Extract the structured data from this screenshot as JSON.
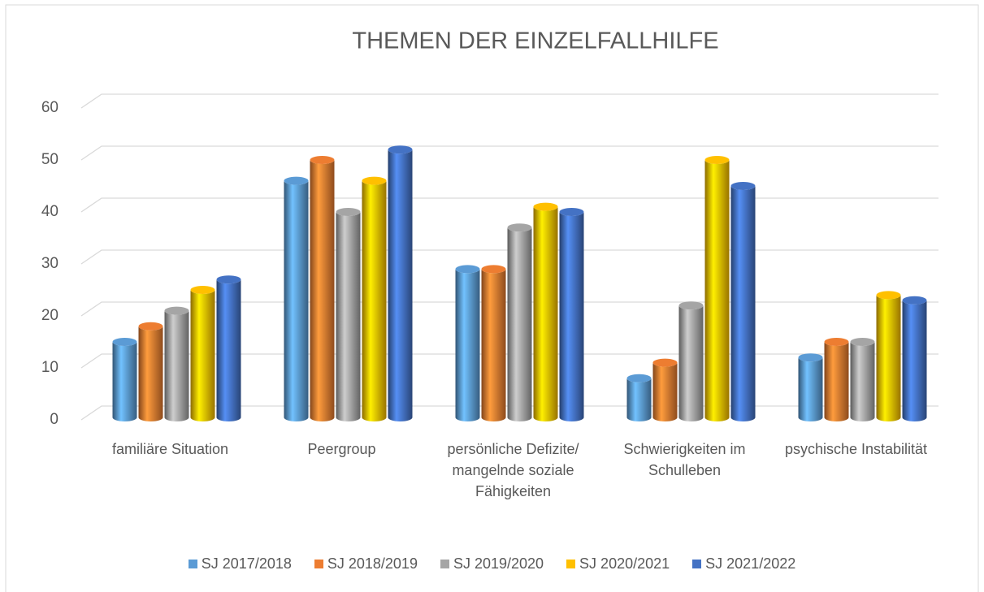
{
  "chart_data": {
    "type": "bar",
    "title": "THEMEN DER EINZELFALLHILFE",
    "categories": [
      "familiäre Situation",
      "Peergroup",
      "persönliche Defizite/ mangelnde soziale Fähigkeiten",
      "Schwierigkeiten im Schulleben",
      "psychische Instabilität"
    ],
    "series": [
      {
        "name": "SJ 2017/2018",
        "color": "#5b9bd5",
        "values": [
          15,
          46,
          29,
          8,
          12
        ]
      },
      {
        "name": "SJ 2018/2019",
        "color": "#ed7d31",
        "values": [
          18,
          50,
          29,
          11,
          15
        ]
      },
      {
        "name": "SJ 2019/2020",
        "color": "#a5a5a5",
        "values": [
          21,
          40,
          37,
          22,
          15
        ]
      },
      {
        "name": "SJ 2020/2021",
        "color": "#ffc000",
        "values": [
          25,
          46,
          41,
          50,
          24
        ]
      },
      {
        "name": "SJ 2021/2022",
        "color": "#4472c4",
        "values": [
          27,
          52,
          40,
          45,
          23
        ]
      }
    ],
    "ylim": [
      0,
      60
    ],
    "yticks": [
      0,
      10,
      20,
      30,
      40,
      50,
      60
    ],
    "grid": true,
    "legend": "bottom"
  }
}
